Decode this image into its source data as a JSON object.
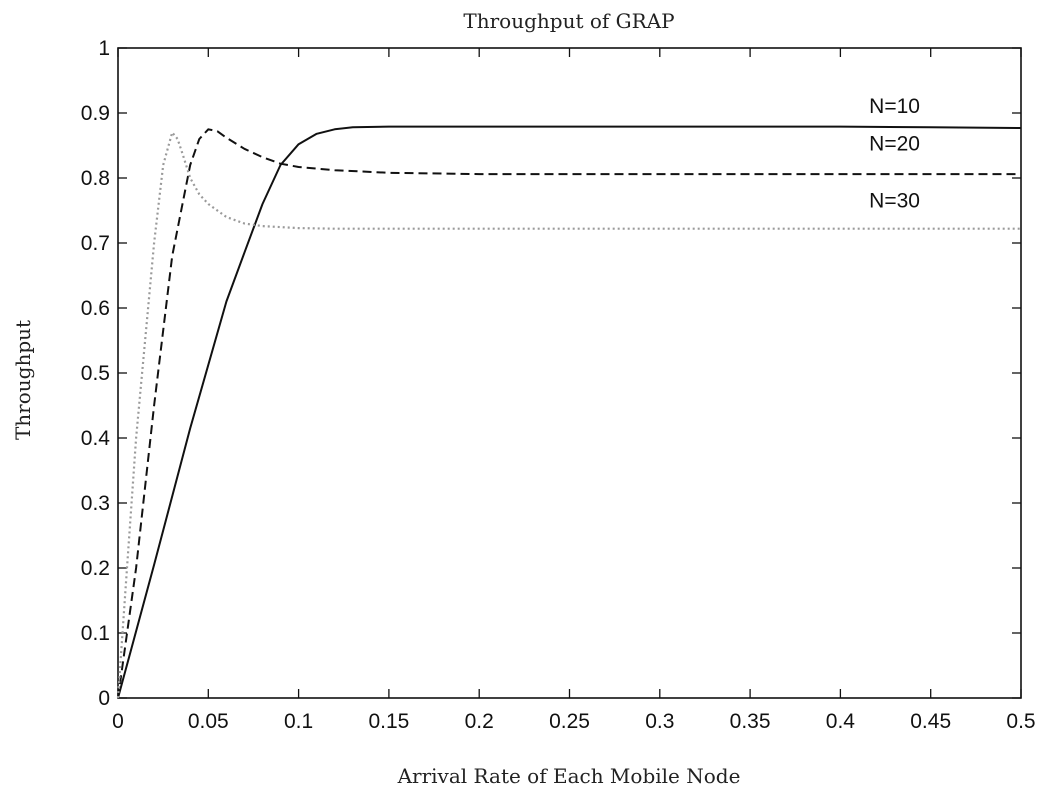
{
  "chart_data": {
    "type": "line",
    "title": "Throughput of GRAP",
    "xlabel": "Arrival Rate of Each Mobile Node",
    "ylabel": "Throughput",
    "xlim": [
      0,
      0.5
    ],
    "ylim": [
      0,
      1
    ],
    "xticks": [
      "0",
      "0.05",
      "0.1",
      "0.15",
      "0.2",
      "0.25",
      "0.3",
      "0.35",
      "0.4",
      "0.45",
      "0.5"
    ],
    "yticks": [
      "0",
      "0.1",
      "0.2",
      "0.3",
      "0.4",
      "0.5",
      "0.6",
      "0.7",
      "0.8",
      "0.9",
      "1"
    ],
    "grid": false,
    "legend": "labels placed beside curves at the right",
    "series": [
      {
        "name": "N=10",
        "style": "solid",
        "color": "#111111",
        "x": [
          0,
          0.02,
          0.04,
          0.06,
          0.07,
          0.08,
          0.09,
          0.1,
          0.11,
          0.12,
          0.13,
          0.15,
          0.2,
          0.3,
          0.4,
          0.45,
          0.5
        ],
        "y": [
          0,
          0.205,
          0.415,
          0.61,
          0.685,
          0.76,
          0.82,
          0.852,
          0.868,
          0.875,
          0.878,
          0.879,
          0.879,
          0.879,
          0.879,
          0.878,
          0.877
        ]
      },
      {
        "name": "N=20",
        "style": "dashed",
        "color": "#111111",
        "x": [
          0,
          0.01,
          0.02,
          0.03,
          0.04,
          0.045,
          0.05,
          0.055,
          0.06,
          0.07,
          0.08,
          0.09,
          0.1,
          0.12,
          0.15,
          0.2,
          0.3,
          0.4,
          0.5
        ],
        "y": [
          0,
          0.2,
          0.45,
          0.68,
          0.82,
          0.86,
          0.875,
          0.872,
          0.862,
          0.845,
          0.832,
          0.822,
          0.817,
          0.812,
          0.808,
          0.806,
          0.806,
          0.806,
          0.806
        ]
      },
      {
        "name": "N=30",
        "style": "dotted",
        "color": "#9a9a9a",
        "x": [
          0,
          0.005,
          0.01,
          0.015,
          0.02,
          0.025,
          0.03,
          0.033,
          0.036,
          0.04,
          0.045,
          0.05,
          0.06,
          0.07,
          0.08,
          0.1,
          0.12,
          0.15,
          0.2,
          0.3,
          0.4,
          0.5
        ],
        "y": [
          0,
          0.2,
          0.4,
          0.55,
          0.7,
          0.82,
          0.87,
          0.86,
          0.835,
          0.8,
          0.775,
          0.76,
          0.74,
          0.73,
          0.726,
          0.723,
          0.722,
          0.722,
          0.722,
          0.722,
          0.722,
          0.722
        ]
      }
    ],
    "series_label_positions": [
      {
        "name": "N=10",
        "x": 0.43,
        "y": 0.9
      },
      {
        "name": "N=20",
        "x": 0.43,
        "y": 0.842
      },
      {
        "name": "N=30",
        "x": 0.43,
        "y": 0.755
      }
    ]
  }
}
